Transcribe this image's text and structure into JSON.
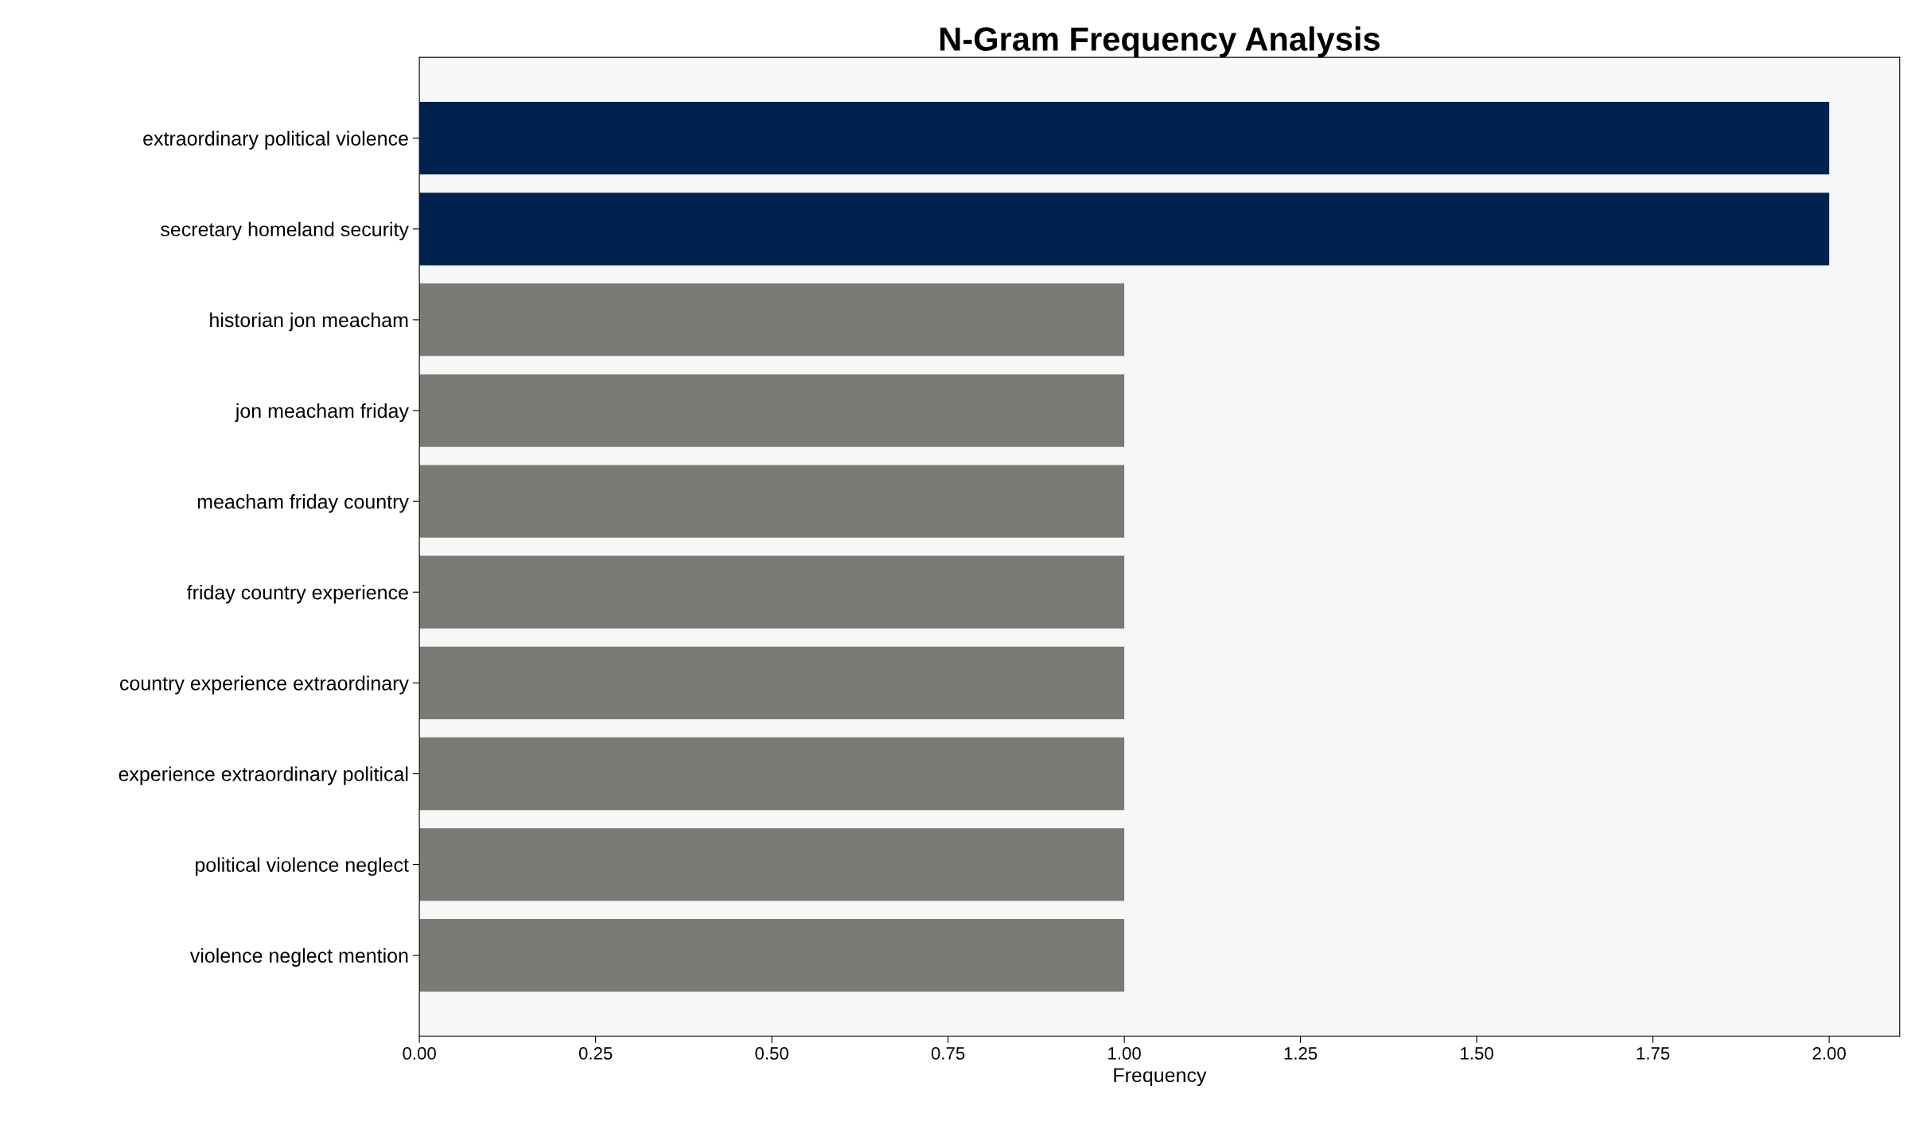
{
  "chart_data": {
    "type": "bar",
    "orientation": "horizontal",
    "title": "N-Gram Frequency Analysis",
    "xlabel": "Frequency",
    "categories": [
      "extraordinary political violence",
      "secretary homeland security",
      "historian jon meacham",
      "jon meacham friday",
      "meacham friday country",
      "friday country experience",
      "country experience extraordinary",
      "experience extraordinary political",
      "political violence neglect",
      "violence neglect mention"
    ],
    "values": [
      2,
      2,
      1,
      1,
      1,
      1,
      1,
      1,
      1,
      1
    ],
    "colors": [
      "#00224e",
      "#00224e",
      "#7b7b76",
      "#7b7b76",
      "#7b7b76",
      "#7b7b76",
      "#7b7b76",
      "#7b7b76",
      "#7b7b76",
      "#7b7b76"
    ],
    "xlim": [
      0,
      2.1
    ],
    "xticks": [
      {
        "value": 0,
        "label": "0.00"
      },
      {
        "value": 0.25,
        "label": "0.25"
      },
      {
        "value": 0.5,
        "label": "0.50"
      },
      {
        "value": 0.75,
        "label": "0.75"
      },
      {
        "value": 1,
        "label": "1.00"
      },
      {
        "value": 1.25,
        "label": "1.25"
      },
      {
        "value": 1.5,
        "label": "1.50"
      },
      {
        "value": 1.75,
        "label": "1.75"
      },
      {
        "value": 2,
        "label": "2.00"
      }
    ],
    "grid": false
  }
}
